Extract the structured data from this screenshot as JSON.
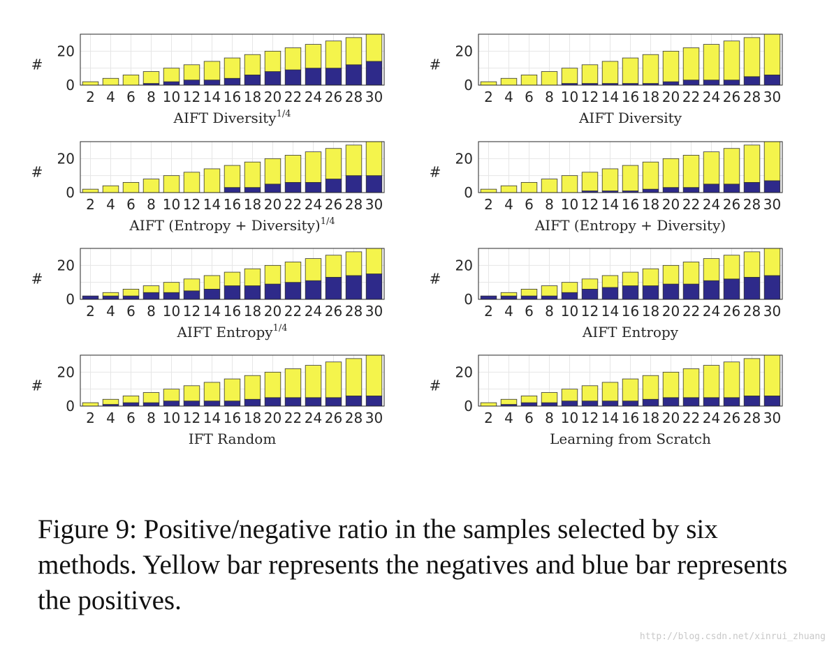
{
  "figure": {
    "caption": "Figure 9: Positive/negative ratio in the samples selected by six methods.  Yellow bar represents the negatives and blue bar represents the positives.",
    "watermark": "http://blog.csdn.net/xinrui_zhuang"
  },
  "chart_data": [
    {
      "type": "bar",
      "stacked": true,
      "xlabel": "AIFT Diversity",
      "xlabel_sup": "1/4",
      "ylabel": "#",
      "categories": [
        "2",
        "4",
        "6",
        "8",
        "10",
        "12",
        "14",
        "16",
        "18",
        "20",
        "22",
        "24",
        "26",
        "28",
        "30"
      ],
      "yticks": [
        "0",
        "20"
      ],
      "ylim": [
        0,
        30
      ],
      "grid": true,
      "series": [
        {
          "color": "#2e2a8a",
          "values": [
            0,
            0,
            0,
            1,
            2,
            3,
            3,
            4,
            6,
            8,
            9,
            10,
            10,
            12,
            14
          ]
        },
        {
          "color": "#f4f44c",
          "values": [
            2,
            4,
            6,
            7,
            8,
            9,
            11,
            12,
            12,
            12,
            13,
            14,
            16,
            16,
            16
          ]
        }
      ]
    },
    {
      "type": "bar",
      "stacked": true,
      "xlabel": "AIFT Diversity",
      "xlabel_sup": "",
      "ylabel": "#",
      "categories": [
        "2",
        "4",
        "6",
        "8",
        "10",
        "12",
        "14",
        "16",
        "18",
        "20",
        "22",
        "24",
        "26",
        "28",
        "30"
      ],
      "yticks": [
        "0",
        "20"
      ],
      "ylim": [
        0,
        30
      ],
      "grid": true,
      "series": [
        {
          "color": "#2e2a8a",
          "values": [
            0,
            0,
            0,
            0,
            1,
            1,
            1,
            1,
            1,
            2,
            3,
            3,
            3,
            5,
            6
          ]
        },
        {
          "color": "#f4f44c",
          "values": [
            2,
            4,
            6,
            8,
            9,
            11,
            13,
            15,
            17,
            18,
            19,
            21,
            23,
            23,
            24
          ]
        }
      ]
    },
    {
      "type": "bar",
      "stacked": true,
      "xlabel": "AIFT (Entropy + Diversity)",
      "xlabel_sup": "1/4",
      "ylabel": "#",
      "categories": [
        "2",
        "4",
        "6",
        "8",
        "10",
        "12",
        "14",
        "16",
        "18",
        "20",
        "22",
        "24",
        "26",
        "28",
        "30"
      ],
      "yticks": [
        "0",
        "20"
      ],
      "ylim": [
        0,
        30
      ],
      "grid": true,
      "series": [
        {
          "color": "#2e2a8a",
          "values": [
            0,
            0,
            0,
            0,
            0,
            0,
            0,
            3,
            3,
            5,
            6,
            6,
            8,
            10,
            10
          ]
        },
        {
          "color": "#f4f44c",
          "values": [
            2,
            4,
            6,
            8,
            10,
            12,
            14,
            13,
            15,
            15,
            16,
            18,
            18,
            18,
            20
          ]
        }
      ]
    },
    {
      "type": "bar",
      "stacked": true,
      "xlabel": "AIFT (Entropy + Diversity)",
      "xlabel_sup": "",
      "ylabel": "#",
      "categories": [
        "2",
        "4",
        "6",
        "8",
        "10",
        "12",
        "14",
        "16",
        "18",
        "20",
        "22",
        "24",
        "26",
        "28",
        "30"
      ],
      "yticks": [
        "0",
        "20"
      ],
      "ylim": [
        0,
        30
      ],
      "grid": true,
      "series": [
        {
          "color": "#2e2a8a",
          "values": [
            0,
            0,
            0,
            0,
            0,
            1,
            1,
            1,
            2,
            3,
            3,
            5,
            5,
            6,
            7
          ]
        },
        {
          "color": "#f4f44c",
          "values": [
            2,
            4,
            6,
            8,
            10,
            11,
            13,
            15,
            16,
            17,
            19,
            19,
            21,
            22,
            23
          ]
        }
      ]
    },
    {
      "type": "bar",
      "stacked": true,
      "xlabel": "AIFT Entropy",
      "xlabel_sup": "1/4",
      "ylabel": "#",
      "categories": [
        "2",
        "4",
        "6",
        "8",
        "10",
        "12",
        "14",
        "16",
        "18",
        "20",
        "22",
        "24",
        "26",
        "28",
        "30"
      ],
      "yticks": [
        "0",
        "20"
      ],
      "ylim": [
        0,
        30
      ],
      "grid": true,
      "series": [
        {
          "color": "#2e2a8a",
          "values": [
            2,
            2,
            2,
            4,
            4,
            5,
            6,
            8,
            8,
            9,
            10,
            11,
            13,
            14,
            15
          ]
        },
        {
          "color": "#f4f44c",
          "values": [
            0,
            2,
            4,
            4,
            6,
            7,
            8,
            8,
            10,
            11,
            12,
            13,
            13,
            14,
            15
          ]
        }
      ]
    },
    {
      "type": "bar",
      "stacked": true,
      "xlabel": "AIFT Entropy",
      "xlabel_sup": "",
      "ylabel": "#",
      "categories": [
        "2",
        "4",
        "6",
        "8",
        "10",
        "12",
        "14",
        "16",
        "18",
        "20",
        "22",
        "24",
        "26",
        "28",
        "30"
      ],
      "yticks": [
        "0",
        "20"
      ],
      "ylim": [
        0,
        30
      ],
      "grid": true,
      "series": [
        {
          "color": "#2e2a8a",
          "values": [
            2,
            2,
            2,
            2,
            4,
            6,
            7,
            8,
            8,
            9,
            9,
            11,
            12,
            13,
            14
          ]
        },
        {
          "color": "#f4f44c",
          "values": [
            0,
            2,
            4,
            6,
            6,
            6,
            7,
            8,
            10,
            11,
            13,
            13,
            14,
            15,
            16
          ]
        }
      ]
    },
    {
      "type": "bar",
      "stacked": true,
      "xlabel": "IFT Random",
      "xlabel_sup": "",
      "ylabel": "#",
      "categories": [
        "2",
        "4",
        "6",
        "8",
        "10",
        "12",
        "14",
        "16",
        "18",
        "20",
        "22",
        "24",
        "26",
        "28",
        "30"
      ],
      "yticks": [
        "0",
        "20"
      ],
      "ylim": [
        0,
        30
      ],
      "grid": true,
      "series": [
        {
          "color": "#2e2a8a",
          "values": [
            0,
            1,
            2,
            2,
            3,
            3,
            3,
            3,
            4,
            5,
            5,
            5,
            5,
            6,
            6
          ]
        },
        {
          "color": "#f4f44c",
          "values": [
            2,
            3,
            4,
            6,
            7,
            9,
            11,
            13,
            14,
            15,
            17,
            19,
            21,
            22,
            24
          ]
        }
      ]
    },
    {
      "type": "bar",
      "stacked": true,
      "xlabel": "Learning from Scratch",
      "xlabel_sup": "",
      "ylabel": "#",
      "categories": [
        "2",
        "4",
        "6",
        "8",
        "10",
        "12",
        "14",
        "16",
        "18",
        "20",
        "22",
        "24",
        "26",
        "28",
        "30"
      ],
      "yticks": [
        "0",
        "20"
      ],
      "ylim": [
        0,
        30
      ],
      "grid": true,
      "series": [
        {
          "color": "#2e2a8a",
          "values": [
            0,
            1,
            2,
            2,
            3,
            3,
            3,
            3,
            4,
            5,
            5,
            5,
            5,
            6,
            6
          ]
        },
        {
          "color": "#f4f44c",
          "values": [
            2,
            3,
            4,
            6,
            7,
            9,
            11,
            13,
            14,
            15,
            17,
            19,
            21,
            22,
            24
          ]
        }
      ]
    }
  ]
}
